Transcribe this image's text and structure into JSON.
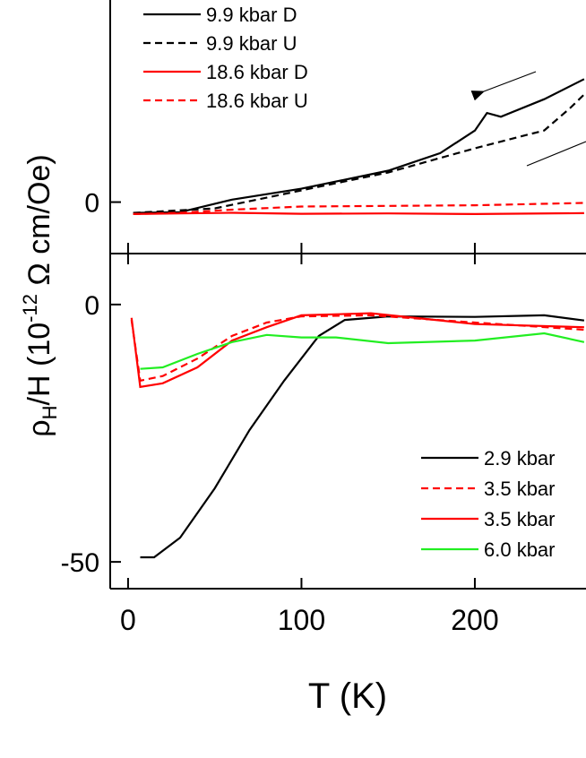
{
  "chart_data": [
    {
      "type": "line",
      "xlim": [
        -10.3,
        264.1
      ],
      "xticks": [
        0,
        100,
        200
      ],
      "ylim": [
        -4.1,
        16.1
      ],
      "yticks": [
        0
      ],
      "legend": "upper left",
      "series": [
        {
          "name": "9.9 kbar D",
          "color": "#000000",
          "dash": false,
          "x": [
            3,
            30,
            60,
            100,
            150,
            180,
            200,
            207,
            215,
            240,
            263
          ],
          "values": [
            -0.86,
            -0.8,
            0.2,
            1.07,
            2.5,
            3.9,
            5.7,
            7.1,
            6.8,
            8.2,
            9.8
          ]
        },
        {
          "name": "9.9 kbar U",
          "color": "#000000",
          "dash": true,
          "x": [
            3,
            50,
            100,
            150,
            200,
            240,
            255,
            263
          ],
          "values": [
            -0.86,
            -0.5,
            0.93,
            2.36,
            4.29,
            5.71,
            7.5,
            8.57
          ]
        },
        {
          "name": "18.6 kbar D",
          "color": "#ff0000",
          "dash": false,
          "x": [
            3,
            30,
            60,
            100,
            150,
            200,
            263
          ],
          "values": [
            -0.95,
            -0.9,
            -0.85,
            -0.93,
            -0.9,
            -0.95,
            -0.88
          ]
        },
        {
          "name": "18.6 kbar U",
          "color": "#ff0000",
          "dash": true,
          "x": [
            3,
            30,
            60,
            100,
            150,
            200,
            263
          ],
          "values": [
            -0.95,
            -0.85,
            -0.6,
            -0.35,
            -0.3,
            -0.25,
            -0.07
          ]
        }
      ]
    },
    {
      "type": "line",
      "x_label": "T (K)",
      "y_label": [
        "ρ",
        "H",
        "/H (10",
        "-12",
        " Ω cm/Oe)"
      ],
      "xlim": [
        -10.3,
        264.1
      ],
      "xticks": [
        0,
        100,
        200
      ],
      "ylim": [
        -55.2,
        9.9
      ],
      "yticks": [
        0,
        -50
      ],
      "legend": "lower right",
      "series": [
        {
          "name": "2.9 kbar",
          "color": "#000000",
          "dash": false,
          "x": [
            7,
            15,
            30,
            50,
            70,
            90,
            110,
            125,
            150,
            200,
            240,
            263
          ],
          "values": [
            -49.1,
            -49.1,
            -45.3,
            -35.7,
            -24.4,
            -14.8,
            -6.1,
            -3.0,
            -2.3,
            -2.4,
            -2.1,
            -3.1
          ]
        },
        {
          "name": "3.5 kbar",
          "color": "#ff0000",
          "dash": true,
          "x": [
            2,
            7,
            20,
            40,
            60,
            80,
            100,
            140,
            200,
            263
          ],
          "values": [
            -3.0,
            -14.8,
            -13.9,
            -10.5,
            -6.1,
            -3.5,
            -2.3,
            -2.1,
            -3.5,
            -4.9
          ]
        },
        {
          "name": "3.5 kbar",
          "color": "#ff0000",
          "dash": false,
          "x": [
            2,
            7,
            20,
            40,
            60,
            80,
            100,
            140,
            200,
            263
          ],
          "values": [
            -2.6,
            -16.0,
            -15.3,
            -12.2,
            -7.0,
            -4.4,
            -2.1,
            -1.7,
            -3.8,
            -4.4
          ]
        },
        {
          "name": "6.0 kbar",
          "color": "#22ee22",
          "dash": false,
          "x": [
            7,
            20,
            40,
            60,
            80,
            100,
            120,
            150,
            200,
            240,
            263
          ],
          "values": [
            -12.5,
            -12.2,
            -9.6,
            -7.3,
            -5.9,
            -6.4,
            -6.4,
            -7.5,
            -7.0,
            -5.6,
            -7.3
          ]
        }
      ]
    }
  ]
}
